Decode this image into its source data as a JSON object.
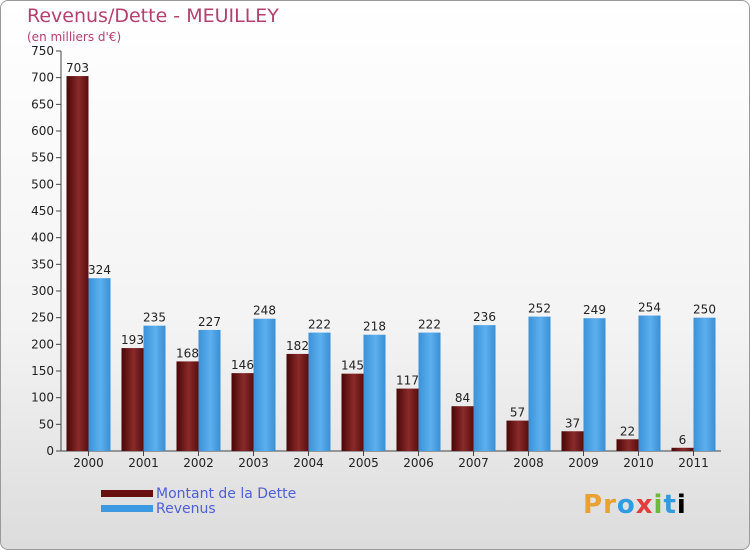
{
  "header": {
    "title": "Revenus/Dette - MEUILLEY",
    "subtitle": "(en milliers d'€)"
  },
  "chart_data": {
    "type": "bar",
    "title": "Revenus/Dette - MEUILLEY",
    "ylabel": "(en milliers d'€)",
    "xlabel": "",
    "ylim": [
      0,
      750
    ],
    "yticks": [
      0,
      50,
      100,
      150,
      200,
      250,
      300,
      350,
      400,
      450,
      500,
      550,
      600,
      650,
      700,
      750
    ],
    "grid": false,
    "categories": [
      "2000",
      "2001",
      "2002",
      "2003",
      "2004",
      "2005",
      "2006",
      "2007",
      "2008",
      "2009",
      "2010",
      "2011"
    ],
    "series": [
      {
        "name": "Montant de la Dette",
        "color": "#7a1c1c",
        "values": [
          703,
          193,
          168,
          146,
          182,
          145,
          117,
          84,
          57,
          37,
          22,
          6
        ]
      },
      {
        "name": "Revenus",
        "color": "#4aa3e6",
        "values": [
          324,
          235,
          227,
          248,
          222,
          218,
          222,
          236,
          252,
          249,
          254,
          250
        ]
      }
    ],
    "legend_position": "bottom-left"
  },
  "legend": {
    "items": [
      {
        "label": "Montant de la Dette",
        "color": "#6a0f0f"
      },
      {
        "label": "Revenus",
        "color": "#3d9ae2"
      }
    ]
  },
  "logo": {
    "letters": [
      "P",
      "r",
      "o",
      "x",
      "i",
      "t",
      "i"
    ],
    "text": "Proxiti"
  }
}
